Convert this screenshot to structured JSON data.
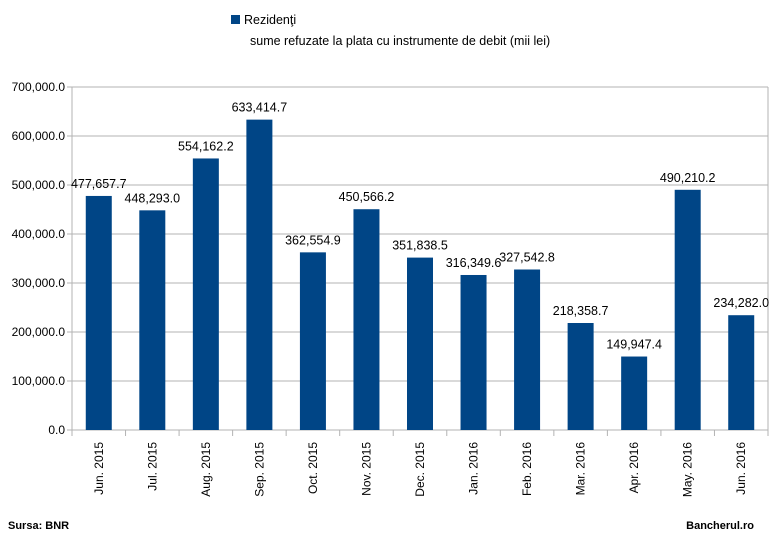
{
  "chart_data": {
    "type": "bar",
    "legend": {
      "series_name": "Rezidenţi",
      "subtitle": "sume refuzate la plata cu instrumente de debit (mii lei)",
      "placement": "top"
    },
    "categories": [
      "Jun. 2015",
      "Jul. 2015",
      "Aug. 2015",
      "Sep. 2015",
      "Oct. 2015",
      "Nov. 2015",
      "Dec. 2015",
      "Jan. 2016",
      "Feb. 2016",
      "Mar. 2016",
      "Apr. 2016",
      "May. 2016",
      "Jun. 2016"
    ],
    "values": [
      477657.7,
      448293.0,
      554162.2,
      633414.7,
      362554.9,
      450566.2,
      351838.5,
      316349.6,
      327542.8,
      218358.7,
      149947.4,
      490210.2,
      234282.0
    ],
    "value_labels": [
      "477,657.7",
      "448,293.0",
      "554,162.2",
      "633,414.7",
      "362,554.9",
      "450,566.2",
      "351,838.5",
      "316,349.6",
      "327,542.8",
      "218,358.7",
      "149,947.4",
      "490,210.2",
      "234,282.0"
    ],
    "y_ticks": [
      "0.0",
      "100,000.0",
      "200,000.0",
      "300,000.0",
      "400,000.0",
      "500,000.0",
      "600,000.0",
      "700,000.0"
    ],
    "ylim": [
      0,
      700000
    ],
    "grid": true,
    "bar_color": "#004586",
    "grid_color": "#b3b3b3"
  },
  "footer": {
    "source": "Sursa: BNR",
    "credit": "Bancherul.ro"
  }
}
